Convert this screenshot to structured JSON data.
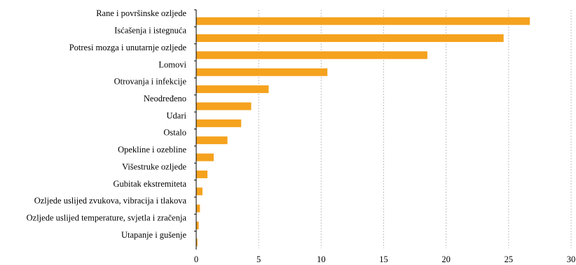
{
  "chart_data": {
    "type": "bar",
    "orientation": "horizontal",
    "categories": [
      "Rane i površinske ozljede",
      "Isćašenja i istegnuća",
      "Potresi mozga i unutarnje ozljede",
      "Lomovi",
      "Otrovanja i infekcije",
      "Neodređeno",
      "Udari",
      "Ostalo",
      "Opekline i ozebline",
      "Višestruke ozljede",
      "Gubitak ekstremiteta",
      "Ozljede uslijed zvukova, vibracija i tlakova",
      "Ozljede uslijed temperature, svjetla i zračenja",
      "Utapanje i gušenje"
    ],
    "values": [
      26.7,
      24.6,
      18.5,
      10.5,
      5.8,
      4.4,
      3.6,
      2.5,
      1.4,
      0.9,
      0.5,
      0.3,
      0.2,
      0.1
    ],
    "xticks": [
      "0",
      "5",
      "10",
      "15",
      "20",
      "25",
      "30"
    ],
    "xlim": [
      0,
      30
    ],
    "grid": "vertical dashed",
    "bar_color": "#f5a21e",
    "title": "",
    "xlabel": "",
    "ylabel": ""
  }
}
